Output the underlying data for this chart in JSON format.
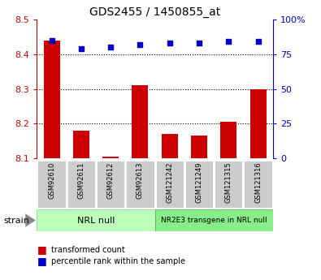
{
  "title": "GDS2455 / 1450855_at",
  "samples": [
    "GSM92610",
    "GSM92611",
    "GSM92612",
    "GSM92613",
    "GSM121242",
    "GSM121249",
    "GSM121315",
    "GSM121316"
  ],
  "transformed_counts": [
    8.44,
    8.18,
    8.105,
    8.31,
    8.17,
    8.165,
    8.205,
    8.3
  ],
  "percentile_ranks": [
    85,
    79,
    80,
    82,
    83,
    83,
    84,
    84
  ],
  "ylim_left": [
    8.1,
    8.5
  ],
  "ylim_right": [
    0,
    100
  ],
  "yticks_left": [
    8.1,
    8.2,
    8.3,
    8.4,
    8.5
  ],
  "yticks_right": [
    0,
    25,
    50,
    75,
    100
  ],
  "yticklabels_right": [
    "0",
    "25",
    "50",
    "75",
    "100%"
  ],
  "grid_values": [
    8.2,
    8.3,
    8.4
  ],
  "bar_color": "#cc0000",
  "dot_color": "#0000cc",
  "bar_bottom": 8.1,
  "groups": [
    {
      "label": "NRL null",
      "start": 0,
      "end": 3,
      "color": "#bbffbb"
    },
    {
      "label": "NR2E3 transgene in NRL null",
      "start": 4,
      "end": 7,
      "color": "#88ee88"
    }
  ],
  "strain_label": "strain",
  "legend_items": [
    {
      "label": "transformed count",
      "color": "#cc0000"
    },
    {
      "label": "percentile rank within the sample",
      "color": "#0000cc"
    }
  ],
  "tick_label_color_left": "#cc0000",
  "tick_label_color_right": "#0000cc",
  "bg_color": "#ffffff",
  "plot_bg_color": "#ffffff",
  "cell_color": "#cccccc",
  "cell_border_color": "#ffffff"
}
